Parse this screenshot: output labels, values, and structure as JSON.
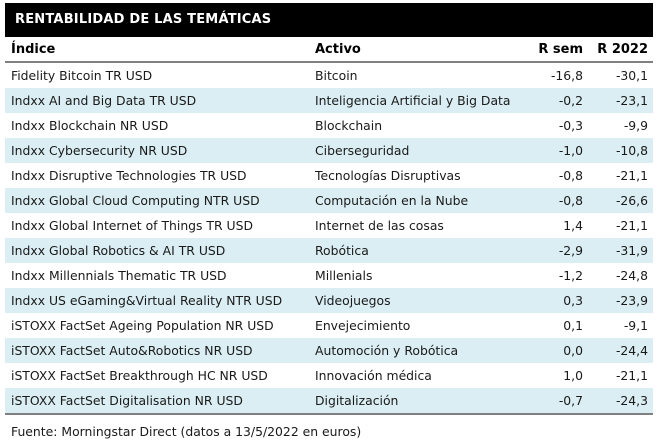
{
  "title_bar": {
    "title": "RENTABILIDAD DE LAS TEMÁTICAS"
  },
  "table": {
    "columns": [
      "Índice",
      "Activo",
      "R sem",
      "R 2022"
    ],
    "rows": [
      {
        "indice": "Fidelity Bitcoin TR USD",
        "activo": "Bitcoin",
        "r_sem": "-16,8",
        "r_2022": "-30,1"
      },
      {
        "indice": "Indxx AI and Big Data TR USD",
        "activo": "Inteligencia Artificial y Big Data",
        "r_sem": "-0,2",
        "r_2022": "-23,1"
      },
      {
        "indice": "Indxx Blockchain NR USD",
        "activo": "Blockchain",
        "r_sem": "-0,3",
        "r_2022": "-9,9"
      },
      {
        "indice": "Indxx Cybersecurity NR USD",
        "activo": "Ciberseguridad",
        "r_sem": "-1,0",
        "r_2022": "-10,8"
      },
      {
        "indice": "Indxx Disruptive Technologies TR USD",
        "activo": "Tecnologías Disruptivas",
        "r_sem": "-0,8",
        "r_2022": "-21,1"
      },
      {
        "indice": "Indxx Global Cloud Computing NTR USD",
        "activo": "Computación en la Nube",
        "r_sem": "-0,8",
        "r_2022": "-26,6"
      },
      {
        "indice": "Indxx Global Internet of Things TR USD",
        "activo": "Internet de las cosas",
        "r_sem": "1,4",
        "r_2022": "-21,1"
      },
      {
        "indice": "Indxx Global Robotics & AI TR USD",
        "activo": "Robótica",
        "r_sem": "-2,9",
        "r_2022": "-31,9"
      },
      {
        "indice": "Indxx Millennials Thematic TR USD",
        "activo": "Millenials",
        "r_sem": "-1,2",
        "r_2022": "-24,8"
      },
      {
        "indice": "Indxx US eGaming&Virtual Reality NTR USD",
        "activo": "Videojuegos",
        "r_sem": "0,3",
        "r_2022": "-23,9"
      },
      {
        "indice": "iSTOXX FactSet Ageing Population NR USD",
        "activo": "Envejecimiento",
        "r_sem": "0,1",
        "r_2022": "-9,1"
      },
      {
        "indice": "iSTOXX FactSet Auto&Robotics NR USD",
        "activo": "Automoción y Robótica",
        "r_sem": "0,0",
        "r_2022": "-24,4"
      },
      {
        "indice": "iSTOXX FactSet Breakthrough HC NR USD",
        "activo": "Innovación médica",
        "r_sem": "1,0",
        "r_2022": "-21,1"
      },
      {
        "indice": "iSTOXX FactSet Digitalisation NR USD",
        "activo": "Digitalización",
        "r_sem": "-0,7",
        "r_2022": "-24,3"
      }
    ]
  },
  "footer": {
    "text": "Fuente: Morningstar Direct (datos a 13/5/2022 en euros)"
  },
  "colors": {
    "title_bar_bg": "#000000",
    "title_text": "#ffffff",
    "alt_row_bg": "#daeef3",
    "row_bg": "#ffffff",
    "border": "#808080",
    "text": "#1a1a1a"
  },
  "chart_data": {
    "type": "table",
    "title": "RENTABILIDAD DE LAS TEMÁTICAS",
    "columns": [
      "Índice",
      "Activo",
      "R sem",
      "R 2022"
    ],
    "rows": [
      [
        "Fidelity Bitcoin TR USD",
        "Bitcoin",
        -16.8,
        -30.1
      ],
      [
        "Indxx AI and Big Data TR USD",
        "Inteligencia Artificial y Big Data",
        -0.2,
        -23.1
      ],
      [
        "Indxx Blockchain NR USD",
        "Blockchain",
        -0.3,
        -9.9
      ],
      [
        "Indxx Cybersecurity NR USD",
        "Ciberseguridad",
        -1.0,
        -10.8
      ],
      [
        "Indxx Disruptive Technologies TR USD",
        "Tecnologías Disruptivas",
        -0.8,
        -21.1
      ],
      [
        "Indxx Global Cloud Computing NTR USD",
        "Computación en la Nube",
        -0.8,
        -26.6
      ],
      [
        "Indxx Global Internet of Things TR USD",
        "Internet de las cosas",
        1.4,
        -21.1
      ],
      [
        "Indxx Global Robotics & AI TR USD",
        "Robótica",
        -2.9,
        -31.9
      ],
      [
        "Indxx Millennials Thematic TR USD",
        "Millenials",
        -1.2,
        -24.8
      ],
      [
        "Indxx US eGaming&Virtual Reality NTR USD",
        "Videojuegos",
        0.3,
        -23.9
      ],
      [
        "iSTOXX FactSet Ageing Population NR USD",
        "Envejecimiento",
        0.1,
        -9.1
      ],
      [
        "iSTOXX FactSet Auto&Robotics NR USD",
        "Automoción y Robótica",
        0.0,
        -24.4
      ],
      [
        "iSTOXX FactSet Breakthrough HC NR USD",
        "Innovación médica",
        1.0,
        -21.1
      ],
      [
        "iSTOXX FactSet Digitalisation NR USD",
        "Digitalización",
        -0.7,
        -24.3
      ]
    ],
    "source_note": "Fuente: Morningstar Direct (datos a 13/5/2022 en euros)",
    "values_unit": "percent",
    "decimal_separator": ","
  }
}
